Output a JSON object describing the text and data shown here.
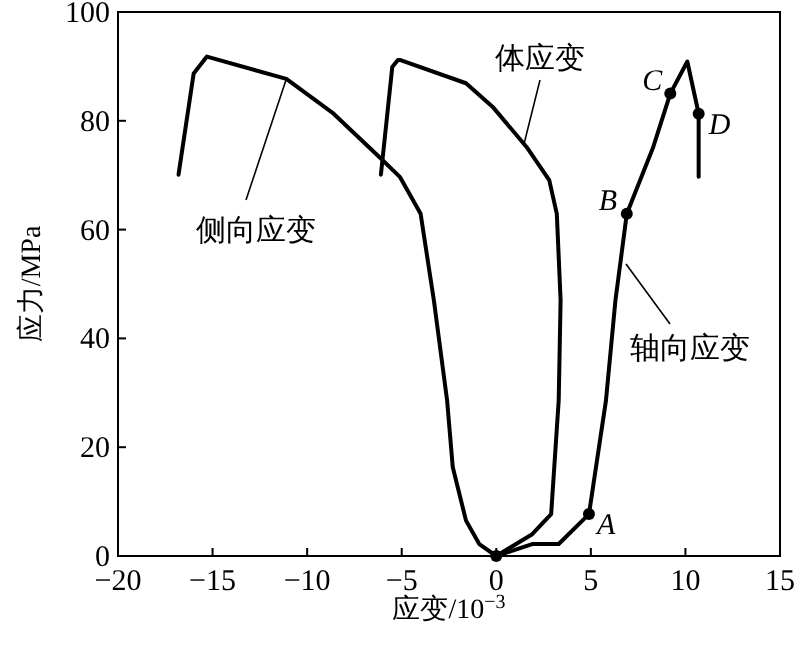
{
  "chart_data": {
    "type": "line",
    "xlabel": "应变/10$^{−3}$",
    "ylabel": "应力/MPa",
    "xlim": [
      -20,
      15
    ],
    "ylim": [
      0,
      100
    ],
    "xticks": [
      {
        "value": -20,
        "label": "−20"
      },
      {
        "value": -15,
        "label": "−15"
      },
      {
        "value": -10,
        "label": "−10"
      },
      {
        "value": -5,
        "label": "−5"
      },
      0,
      5,
      10,
      15
    ],
    "yticks": [
      0,
      20,
      40,
      60,
      80,
      100
    ],
    "grid": false,
    "marker": "none",
    "line_style": "solid",
    "series": [
      {
        "name": "侧向应变",
        "color": "#000000",
        "x": [
          -16.8,
          -16.0,
          -15.3,
          -11.1,
          -8.6,
          -6.2,
          -5.1,
          -4.0,
          -3.3,
          -2.6,
          -2.3,
          -1.6,
          -0.9,
          0
        ],
        "values": [
          70.1,
          88.7,
          91.8,
          87.7,
          81.3,
          73.4,
          69.7,
          62.9,
          47,
          28.6,
          16.3,
          6.5,
          2.2,
          0
        ]
      },
      {
        "name": "体应变",
        "color": "#000000",
        "x": [
          -6.1,
          -5.5,
          -5.2,
          -5.1,
          -1.6,
          -0.2,
          1.6,
          2.8,
          3.2,
          3.4,
          3.3,
          2.9,
          1.9,
          0
        ],
        "values": [
          70.1,
          89.9,
          91.2,
          91.2,
          86.9,
          82.6,
          75.2,
          69.1,
          62.9,
          47,
          28.6,
          7.7,
          4,
          0
        ]
      },
      {
        "name": "轴向应变",
        "color": "#000000",
        "x": [
          0,
          1.9,
          3.3,
          4.9,
          5.8,
          6.3,
          6.9,
          8.3,
          9.2,
          10.1,
          10.7,
          10.7
        ],
        "values": [
          0,
          2.2,
          2.2,
          7.7,
          28.6,
          47,
          62.9,
          75.2,
          85,
          90.9,
          81.3,
          69.7
        ]
      },
      {
        "type": "scatter",
        "color": "#000000",
        "marker": "circle",
        "x": [
          0,
          4.9,
          6.9,
          9.2,
          10.7
        ],
        "values": [
          0,
          7.7,
          62.9,
          85,
          81.3
        ]
      }
    ],
    "annotations": [
      {
        "text": "A",
        "x": 4.9,
        "y": 7.7
      },
      {
        "text": "B",
        "x": 6.9,
        "y": 62.9
      },
      {
        "text": "C",
        "x": 9.2,
        "y": 85
      },
      {
        "text": "D",
        "x": 10.7,
        "y": 81.3
      }
    ]
  }
}
